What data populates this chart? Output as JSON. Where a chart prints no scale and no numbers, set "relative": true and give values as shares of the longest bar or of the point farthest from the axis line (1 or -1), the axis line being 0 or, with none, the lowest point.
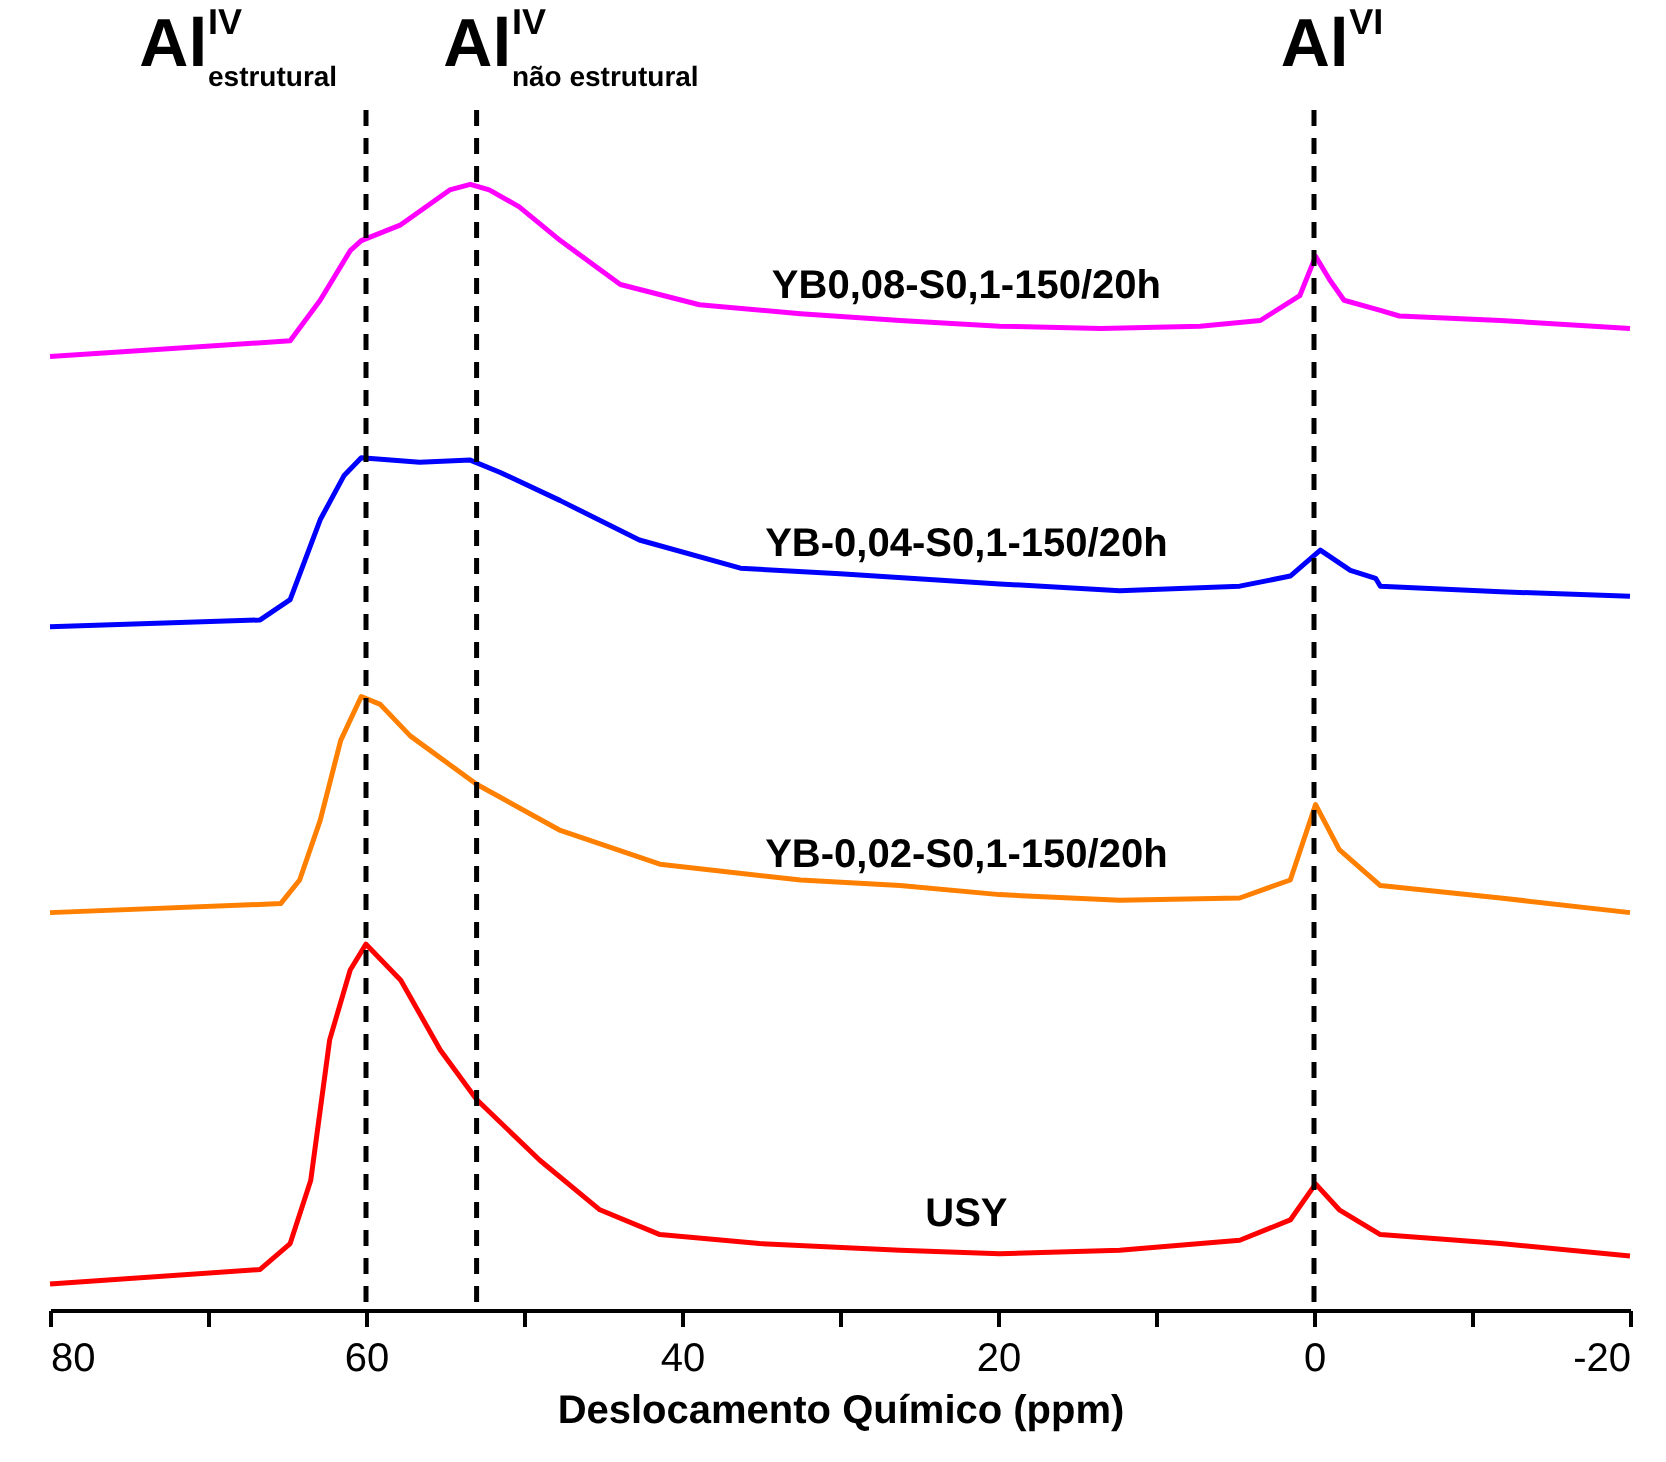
{
  "chart_data": {
    "type": "line",
    "relative": true,
    "xlabel": "Deslocamento Químico (ppm)",
    "xlim": [
      80,
      -20
    ],
    "xticks": [
      80,
      {
        "value": 70,
        "label": null
      },
      60,
      {
        "value": 50,
        "label": null
      },
      40,
      {
        "value": 30,
        "label": null
      },
      20,
      {
        "value": 10,
        "label": null
      },
      0,
      {
        "value": -10,
        "label": null
      },
      -20
    ],
    "grid": false,
    "legend": false,
    "marker": "none",
    "line_style": "solid",
    "series": [
      {
        "name": "YB0,08-S0,1-150/20h",
        "color": "#ff00ff",
        "x": [
          80,
          64.8,
          62.9,
          61,
          60.3,
          57.8,
          54.7,
          53.4,
          52.2,
          50.3,
          47.7,
          43.9,
          38.9,
          32.5,
          26.2,
          19.9,
          13.5,
          7.2,
          3.4,
          0.9,
          -0.1,
          -1,
          -1.9,
          -4.2,
          -5.4,
          -11.8,
          -20
        ],
        "values": [
          0.847,
          0.861,
          0.897,
          0.941,
          0.95,
          0.964,
          0.995,
          1.0,
          0.995,
          0.98,
          0.95,
          0.911,
          0.893,
          0.885,
          0.879,
          0.874,
          0.872,
          0.874,
          0.879,
          0.901,
          0.936,
          0.915,
          0.897,
          0.888,
          0.883,
          0.879,
          0.872
        ]
      },
      {
        "name": "YB-0,04-S0,1-150/20h",
        "color": "#0000ff",
        "x": [
          80,
          66.7,
          64.8,
          62.9,
          61.4,
          60.3,
          56.6,
          53.4,
          51.5,
          47.7,
          42.7,
          36.3,
          30,
          19.9,
          12.3,
          4.7,
          1.5,
          -0.4,
          -2.3,
          -3.9,
          -4.2,
          -11.8,
          -20
        ],
        "values": [
          0.607,
          0.613,
          0.631,
          0.702,
          0.741,
          0.757,
          0.753,
          0.755,
          0.744,
          0.719,
          0.684,
          0.659,
          0.654,
          0.645,
          0.639,
          0.643,
          0.652,
          0.675,
          0.657,
          0.65,
          0.643,
          0.638,
          0.634
        ]
      },
      {
        "name": "YB-0,02-S0,1-150/20h",
        "color": "#ff8000",
        "x": [
          80,
          65.4,
          64.2,
          62.9,
          61.6,
          60.3,
          59.1,
          57.2,
          53,
          47.7,
          41.4,
          32.5,
          26.2,
          19.9,
          12.3,
          4.7,
          1.5,
          -0.1,
          -1.6,
          -4.2,
          -11.8,
          -20
        ],
        "values": [
          0.353,
          0.361,
          0.382,
          0.435,
          0.506,
          0.545,
          0.538,
          0.51,
          0.467,
          0.426,
          0.396,
          0.382,
          0.377,
          0.369,
          0.364,
          0.366,
          0.382,
          0.449,
          0.409,
          0.377,
          0.366,
          0.353
        ]
      },
      {
        "name": "USY",
        "color": "#ff0000",
        "x": [
          80,
          66.7,
          64.8,
          63.5,
          62.3,
          61,
          60,
          57.8,
          55.3,
          53,
          49,
          45.2,
          41.4,
          35.1,
          26.2,
          19.9,
          12.3,
          4.7,
          1.5,
          -0.1,
          -1.6,
          -4.2,
          -11.8,
          -20
        ],
        "values": [
          0.023,
          0.036,
          0.059,
          0.115,
          0.24,
          0.302,
          0.325,
          0.293,
          0.231,
          0.187,
          0.133,
          0.089,
          0.067,
          0.059,
          0.053,
          0.05,
          0.053,
          0.062,
          0.08,
          0.112,
          0.089,
          0.067,
          0.059,
          0.048
        ]
      }
    ],
    "ref_lines": [
      {
        "axis": "x",
        "value": 60,
        "label": "Al$^{IV}$$_{estrutural}$",
        "color": "#000000",
        "line_style": "dashed"
      },
      {
        "axis": "x",
        "value": 53,
        "label": "Al$^{IV}$$_{não estrutural}$",
        "color": "#000000",
        "line_style": "dashed"
      },
      {
        "axis": "x",
        "value": 0,
        "label": "Al$^{VI}$",
        "color": "#000000",
        "line_style": "dashed"
      }
    ]
  }
}
